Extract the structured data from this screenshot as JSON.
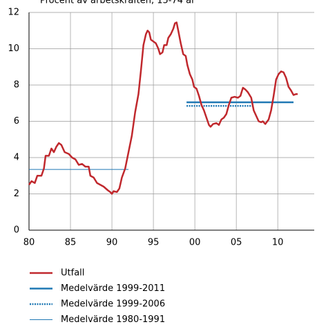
{
  "chart_data": {
    "type": "line",
    "title": "Procent av arbetskraften, 15-74 år",
    "xlim": [
      1980,
      2014.4
    ],
    "xticks": [
      {
        "value": 1980,
        "label": "80"
      },
      {
        "value": 1985,
        "label": "85"
      },
      {
        "value": 1990,
        "label": "90"
      },
      {
        "value": 1995,
        "label": "95"
      },
      {
        "value": 2000,
        "label": "00"
      },
      {
        "value": 2005,
        "label": "05"
      },
      {
        "value": 2010,
        "label": "10"
      }
    ],
    "ylim": [
      0,
      12
    ],
    "yticks": [
      0,
      2,
      4,
      6,
      8,
      10,
      12
    ],
    "grid": true,
    "legend": "bottom",
    "series": [
      {
        "name": "Utfall",
        "color": "#c0282d",
        "width": 2.5,
        "dash": "solid",
        "x": [
          1980.0,
          1980.3,
          1980.7,
          1981.0,
          1981.5,
          1981.8,
          1982.0,
          1982.4,
          1982.7,
          1983.0,
          1983.3,
          1983.6,
          1983.9,
          1984.3,
          1984.8,
          1985.2,
          1985.6,
          1986.0,
          1986.4,
          1986.8,
          1987.2,
          1987.4,
          1987.8,
          1988.2,
          1988.6,
          1989.0,
          1989.5,
          1989.8,
          1990.0,
          1990.2,
          1990.6,
          1990.9,
          1991.2,
          1991.6,
          1992.0,
          1992.4,
          1992.8,
          1993.2,
          1993.5,
          1993.8,
          1994.1,
          1994.3,
          1994.5,
          1994.7,
          1995.0,
          1995.3,
          1995.6,
          1995.8,
          1996.1,
          1996.3,
          1996.6,
          1996.8,
          1997.1,
          1997.4,
          1997.6,
          1997.8,
          1998.0,
          1998.3,
          1998.6,
          1998.9,
          1999.1,
          1999.4,
          1999.7,
          1999.9,
          2000.2,
          2000.5,
          2000.8,
          2001.1,
          2001.4,
          2001.7,
          2001.9,
          2002.2,
          2002.6,
          2002.9,
          2003.2,
          2003.5,
          2003.8,
          2004.1,
          2004.4,
          2004.8,
          2005.2,
          2005.5,
          2005.8,
          2006.1,
          2006.4,
          2006.8,
          2007.1,
          2007.4,
          2007.7,
          2008.0,
          2008.2,
          2008.5,
          2008.9,
          2009.2,
          2009.5,
          2009.8,
          2010.1,
          2010.4,
          2010.7,
          2011.0,
          2011.3,
          2011.6,
          2011.9,
          2012.2,
          2012.4
        ],
        "values": [
          2.5,
          2.7,
          2.6,
          3.0,
          3.0,
          3.4,
          4.1,
          4.1,
          4.5,
          4.3,
          4.6,
          4.8,
          4.7,
          4.3,
          4.2,
          4.0,
          3.9,
          3.6,
          3.65,
          3.5,
          3.5,
          3.0,
          2.9,
          2.6,
          2.5,
          2.4,
          2.2,
          2.1,
          2.0,
          2.15,
          2.1,
          2.3,
          2.9,
          3.4,
          4.3,
          5.2,
          6.5,
          7.5,
          8.8,
          10.2,
          10.8,
          11.0,
          10.9,
          10.5,
          10.4,
          10.3,
          10.0,
          9.7,
          9.8,
          10.2,
          10.2,
          10.6,
          10.8,
          11.1,
          11.4,
          11.45,
          11.0,
          10.3,
          9.7,
          9.6,
          9.1,
          8.6,
          8.3,
          7.9,
          7.8,
          7.4,
          6.9,
          6.6,
          6.2,
          5.8,
          5.7,
          5.85,
          5.9,
          5.8,
          6.1,
          6.2,
          6.4,
          6.9,
          7.3,
          7.35,
          7.3,
          7.4,
          7.85,
          7.75,
          7.6,
          7.3,
          6.6,
          6.3,
          6.0,
          5.95,
          6.0,
          5.85,
          6.1,
          6.6,
          7.4,
          8.3,
          8.6,
          8.75,
          8.7,
          8.4,
          7.9,
          7.7,
          7.45,
          7.5,
          7.5
        ]
      },
      {
        "name": "Medelvärde 1999-2011",
        "color": "#1f78b4",
        "width": 2.5,
        "dash": "solid",
        "x": [
          1999.0,
          2011.9
        ],
        "values": [
          7.05,
          7.05
        ]
      },
      {
        "name": "Medelvärde 1999-2006",
        "color": "#1f78b4",
        "width": 2.5,
        "dash": "dotted",
        "x": [
          1999.0,
          2007.0
        ],
        "values": [
          6.85,
          6.85
        ]
      },
      {
        "name": "Medelvärde 1980-1991",
        "color": "#1f78b4",
        "width": 1,
        "dash": "solid",
        "x": [
          1980.0,
          1992.0
        ],
        "values": [
          3.35,
          3.35
        ]
      }
    ]
  }
}
